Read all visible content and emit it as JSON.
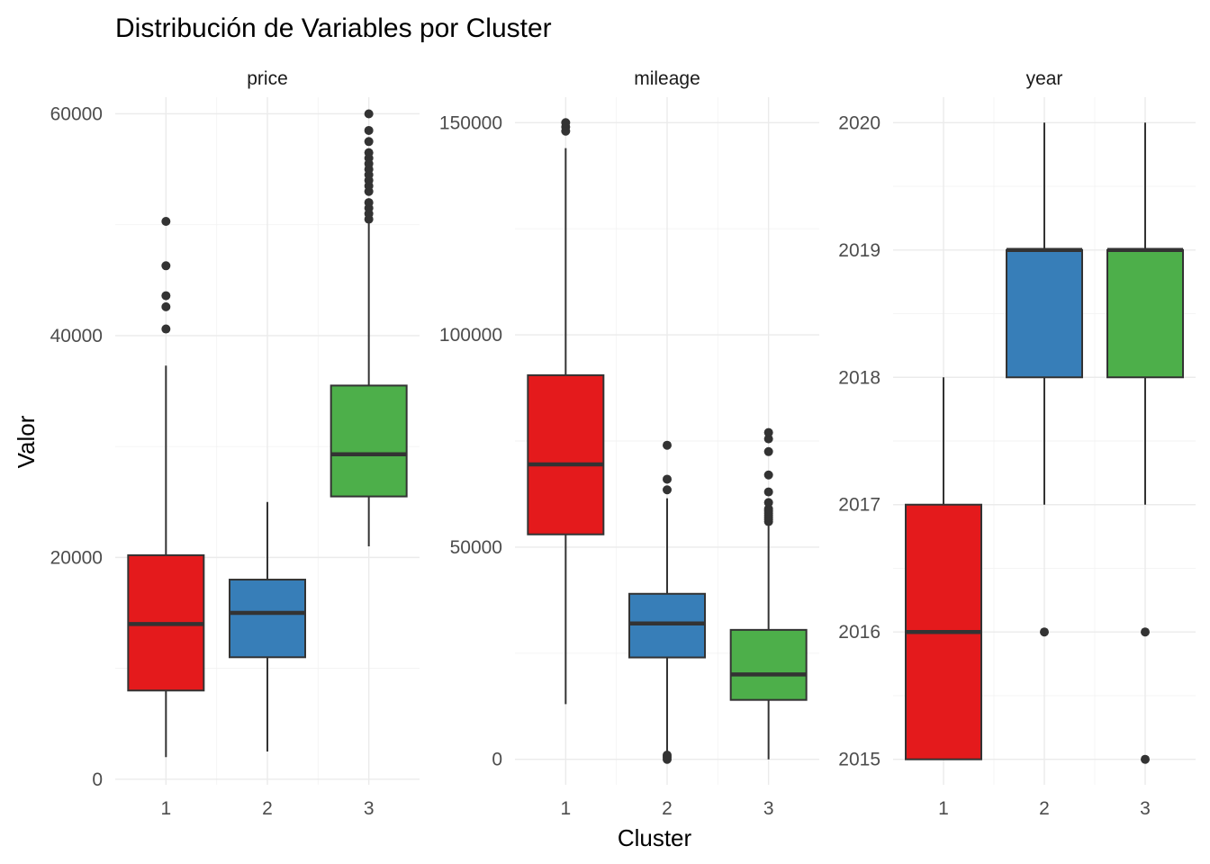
{
  "chart_data": {
    "type": "box",
    "title": "Distribución de Variables por Cluster",
    "xlabel": "Cluster",
    "ylabel": "Valor",
    "categories": [
      "1",
      "2",
      "3"
    ],
    "colors": {
      "1": "#E41A1C",
      "2": "#377EB8",
      "3": "#4DAF4A"
    },
    "grid": true,
    "legend": "none",
    "panels": [
      {
        "name": "price",
        "ylim": [
          -500,
          61500
        ],
        "yticks": [
          0,
          20000,
          40000,
          60000
        ],
        "tick_labels": [
          "0",
          "20000",
          "40000",
          "60000"
        ],
        "minor_ticks": [
          10000,
          30000,
          50000
        ],
        "boxes": [
          {
            "cluster": "1",
            "whisker_low": 2000,
            "q1": 8000,
            "median": 14000,
            "q3": 20200,
            "whisker_high": 37300,
            "outliers": [
              40600,
              42600,
              43600,
              46300,
              50300
            ]
          },
          {
            "cluster": "2",
            "whisker_low": 2500,
            "q1": 11000,
            "median": 15000,
            "q3": 18000,
            "whisker_high": 25000,
            "outliers": []
          },
          {
            "cluster": "3",
            "whisker_low": 21000,
            "q1": 25500,
            "median": 29300,
            "q3": 35500,
            "whisker_high": 50300,
            "outliers": [
              50500,
              51000,
              51500,
              52000,
              53000,
              53500,
              54000,
              54500,
              55000,
              55500,
              56000,
              56500,
              57500,
              58500,
              60000
            ]
          }
        ]
      },
      {
        "name": "mileage",
        "ylim": [
          -6000,
          156000
        ],
        "yticks": [
          0,
          50000,
          100000,
          150000
        ],
        "tick_labels": [
          "0",
          "50000",
          "100000",
          "150000"
        ],
        "minor_ticks": [
          25000,
          75000,
          125000
        ],
        "boxes": [
          {
            "cluster": "1",
            "whisker_low": 13000,
            "q1": 53000,
            "median": 69500,
            "q3": 90500,
            "whisker_high": 144000,
            "outliers": [
              148000,
              149000,
              150000
            ]
          },
          {
            "cluster": "2",
            "whisker_low": 1000,
            "q1": 24000,
            "median": 32000,
            "q3": 39000,
            "whisker_high": 61500,
            "outliers": [
              0,
              500,
              1000,
              63500,
              66000,
              74000
            ]
          },
          {
            "cluster": "3",
            "whisker_low": 0,
            "q1": 14000,
            "median": 20000,
            "q3": 30500,
            "whisker_high": 55000,
            "outliers": [
              56000,
              56500,
              57000,
              57500,
              58000,
              58500,
              59000,
              60500,
              63000,
              67000,
              72500,
              75500,
              77000
            ]
          }
        ]
      },
      {
        "name": "year",
        "ylim": [
          2014.8,
          2020.2
        ],
        "yticks": [
          2015,
          2016,
          2017,
          2018,
          2019,
          2020
        ],
        "tick_labels": [
          "2015",
          "2016",
          "2017",
          "2018",
          "2019",
          "2020"
        ],
        "minor_ticks": [
          2015.5,
          2016.5,
          2017.5,
          2018.5,
          2019.5
        ],
        "boxes": [
          {
            "cluster": "1",
            "whisker_low": 2015,
            "q1": 2015,
            "median": 2016,
            "q3": 2017,
            "whisker_high": 2018,
            "outliers": []
          },
          {
            "cluster": "2",
            "whisker_low": 2017,
            "q1": 2018,
            "median": 2019,
            "q3": 2019,
            "whisker_high": 2020,
            "outliers": [
              2016
            ]
          },
          {
            "cluster": "3",
            "whisker_low": 2017,
            "q1": 2018,
            "median": 2019,
            "q3": 2019,
            "whisker_high": 2020,
            "outliers": [
              2015,
              2016
            ]
          }
        ]
      }
    ]
  }
}
